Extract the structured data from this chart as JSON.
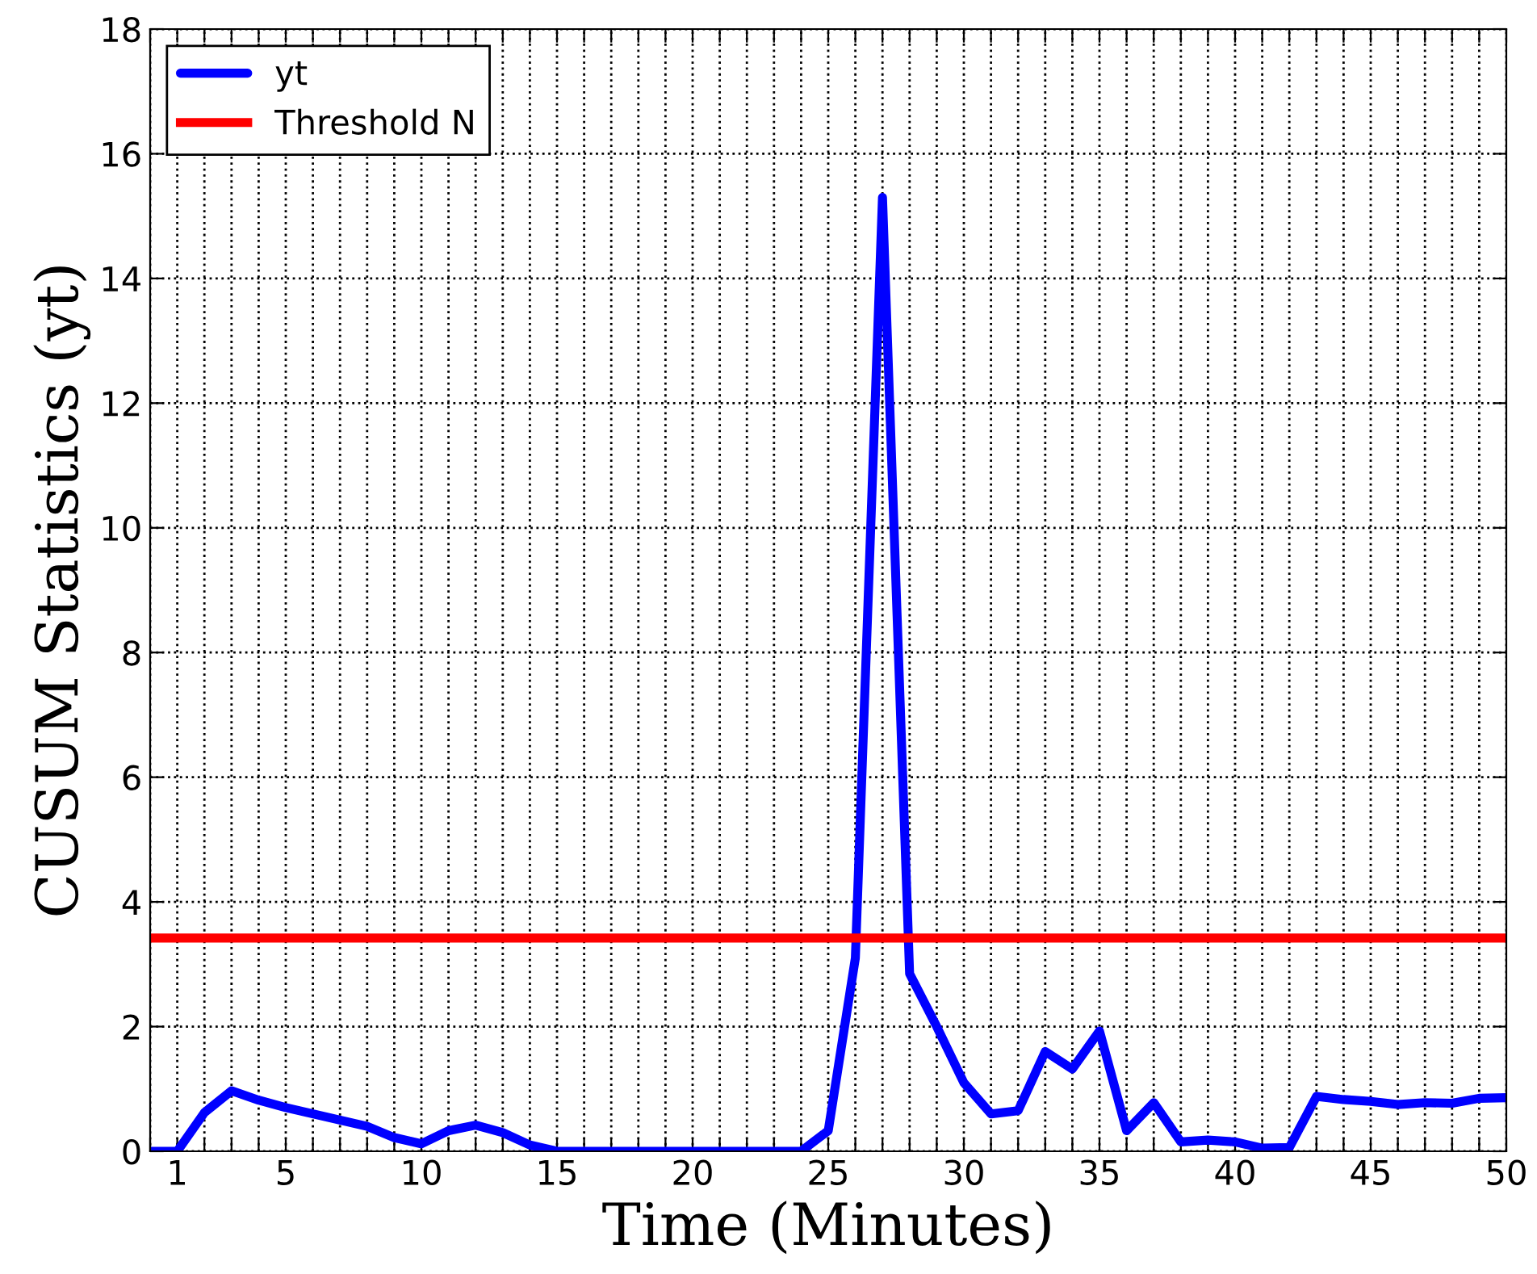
{
  "chart_data": {
    "type": "line",
    "xlabel": "Time (Minutes)",
    "ylabel": "CUSUM Statistics (yt)",
    "x": [
      0,
      1,
      2,
      3,
      4,
      5,
      6,
      7,
      8,
      9,
      10,
      11,
      12,
      13,
      14,
      15,
      16,
      17,
      18,
      19,
      20,
      21,
      22,
      23,
      24,
      25,
      26,
      27,
      28,
      29,
      30,
      31,
      32,
      33,
      34,
      35,
      36,
      37,
      38,
      39,
      40,
      41,
      42,
      43,
      44,
      45,
      46,
      47,
      48,
      49,
      50
    ],
    "series": [
      {
        "name": "yt",
        "color": "#0000ff",
        "values": [
          0,
          0,
          0.62,
          0.97,
          0.82,
          0.7,
          0.6,
          0.5,
          0.4,
          0.22,
          0.12,
          0.33,
          0.42,
          0.3,
          0.1,
          0,
          0,
          0,
          0,
          0,
          0,
          0,
          0,
          0,
          0,
          0.33,
          3.1,
          15.3,
          2.85,
          2.0,
          1.1,
          0.6,
          0.65,
          1.6,
          1.32,
          1.93,
          0.33,
          0.78,
          0.15,
          0.18,
          0.15,
          0.05,
          0.06,
          0.88,
          0.83,
          0.8,
          0.75,
          0.78,
          0.77,
          0.85,
          0.86
        ]
      }
    ],
    "ref_lines": [
      {
        "axis": "y",
        "value": 3.42,
        "label": "Threshold N",
        "color": "#ff0000",
        "line_style": "solid"
      }
    ],
    "xlim": [
      0,
      50
    ],
    "ylim": [
      0,
      18
    ],
    "xticks": [
      {
        "value": 0,
        "label": null
      },
      1,
      {
        "value": 2,
        "label": null
      },
      {
        "value": 3,
        "label": null
      },
      {
        "value": 4,
        "label": null
      },
      5,
      {
        "value": 6,
        "label": null
      },
      {
        "value": 7,
        "label": null
      },
      {
        "value": 8,
        "label": null
      },
      {
        "value": 9,
        "label": null
      },
      10,
      {
        "value": 11,
        "label": null
      },
      {
        "value": 12,
        "label": null
      },
      {
        "value": 13,
        "label": null
      },
      {
        "value": 14,
        "label": null
      },
      15,
      {
        "value": 16,
        "label": null
      },
      {
        "value": 17,
        "label": null
      },
      {
        "value": 18,
        "label": null
      },
      {
        "value": 19,
        "label": null
      },
      20,
      {
        "value": 21,
        "label": null
      },
      {
        "value": 22,
        "label": null
      },
      {
        "value": 23,
        "label": null
      },
      {
        "value": 24,
        "label": null
      },
      25,
      {
        "value": 26,
        "label": null
      },
      {
        "value": 27,
        "label": null
      },
      {
        "value": 28,
        "label": null
      },
      {
        "value": 29,
        "label": null
      },
      30,
      {
        "value": 31,
        "label": null
      },
      {
        "value": 32,
        "label": null
      },
      {
        "value": 33,
        "label": null
      },
      {
        "value": 34,
        "label": null
      },
      35,
      {
        "value": 36,
        "label": null
      },
      {
        "value": 37,
        "label": null
      },
      {
        "value": 38,
        "label": null
      },
      {
        "value": 39,
        "label": null
      },
      40,
      {
        "value": 41,
        "label": null
      },
      {
        "value": 42,
        "label": null
      },
      {
        "value": 43,
        "label": null
      },
      {
        "value": 44,
        "label": null
      },
      45,
      {
        "value": 46,
        "label": null
      },
      {
        "value": 47,
        "label": null
      },
      {
        "value": 48,
        "label": null
      },
      {
        "value": 49,
        "label": null
      },
      50
    ],
    "yticks": [
      0,
      2,
      4,
      6,
      8,
      10,
      12,
      14,
      16,
      18
    ],
    "grid": true,
    "legend": "top left",
    "marker": "none",
    "line_style": "solid"
  }
}
